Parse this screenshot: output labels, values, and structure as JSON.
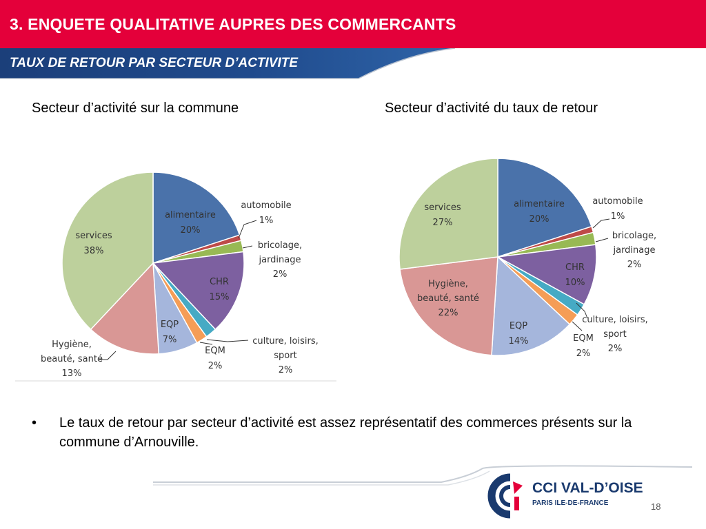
{
  "header": {
    "title": "3. ENQUETE QUALITATIVE AUPRES DES COMMERCANTS",
    "subtitle": "TAUX DE RETOUR PAR SECTEUR D’ACTIVITE"
  },
  "colors": {
    "header_red": "#e4003a",
    "subbar_blue": "#1b3f7a"
  },
  "chart_data": [
    {
      "type": "pie",
      "title": "Secteur d’activité sur la commune",
      "slices": [
        {
          "label": "alimentaire",
          "value": 20,
          "pct": "20%",
          "color": "#4a72aa"
        },
        {
          "label": "automobile",
          "value": 1,
          "pct": "1%",
          "color": "#be4b48"
        },
        {
          "label": "bricolage, jardinage",
          "value": 2,
          "pct": "2%",
          "color": "#98b954"
        },
        {
          "label": "CHR",
          "value": 15,
          "pct": "15%",
          "color": "#7d60a0"
        },
        {
          "label": "culture, loisirs, sport",
          "value": 2,
          "pct": "2%",
          "color": "#46aac4"
        },
        {
          "label": "EQM",
          "value": 2,
          "pct": "2%",
          "color": "#f59d56"
        },
        {
          "label": "EQP",
          "value": 7,
          "pct": "7%",
          "color": "#a5b6dc"
        },
        {
          "label": "Hygiène, beauté, santé",
          "value": 13,
          "pct": "13%",
          "color": "#d99795"
        },
        {
          "label": "services",
          "value": 38,
          "pct": "38%",
          "color": "#bdd09c"
        }
      ]
    },
    {
      "type": "pie",
      "title": "Secteur d’activité du taux de retour",
      "slices": [
        {
          "label": "alimentaire",
          "value": 20,
          "pct": "20%",
          "color": "#4a72aa"
        },
        {
          "label": "automobile",
          "value": 1,
          "pct": "1%",
          "color": "#be4b48"
        },
        {
          "label": "bricolage, jardinage",
          "value": 2,
          "pct": "2%",
          "color": "#98b954"
        },
        {
          "label": "CHR",
          "value": 10,
          "pct": "10%",
          "color": "#7d60a0"
        },
        {
          "label": "culture, loisirs, sport",
          "value": 2,
          "pct": "2%",
          "color": "#46aac4"
        },
        {
          "label": "EQM",
          "value": 2,
          "pct": "2%",
          "color": "#f59d56"
        },
        {
          "label": "EQP",
          "value": 14,
          "pct": "14%",
          "color": "#a5b6dc"
        },
        {
          "label": "Hygiène, beauté, santé",
          "value": 22,
          "pct": "22%",
          "color": "#d99795"
        },
        {
          "label": "services",
          "value": 27,
          "pct": "27%",
          "color": "#bdd09c"
        }
      ]
    }
  ],
  "bullet": {
    "symbol": "•",
    "text": "Le taux de retour par secteur d’activité est assez représentatif des commerces présents sur la commune d’Arnouville."
  },
  "logo": {
    "name": "CCI VAL-D’OISE",
    "sub": "PARIS ILE-DE-FRANCE"
  },
  "page_number": "18"
}
